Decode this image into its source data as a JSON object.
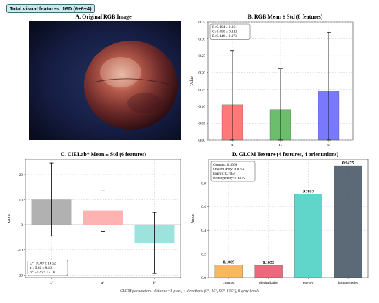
{
  "badge": "Total visual features: 16D (6+6+4)",
  "footer": "GLCM parameters: distance=1 pixel, 4 directions (0°, 45°, 90°, 135°), 8 gray levels",
  "colors": {
    "R": "#ff6b6b",
    "G": "#5cb85c",
    "B": "#6b6bff",
    "Lstar": "#a8a8a8",
    "astar": "#ffaaaa",
    "bstar": "#90e0d8",
    "contrast": "#f8b04f",
    "dissimilarity": "#e85a70",
    "energy": "#4fd1c5",
    "homogeneity": "#4a5a68"
  },
  "panels": {
    "a": {
      "title": "A. Original RGB Image"
    },
    "b": {
      "title": "B. RGB Mean ± Std (6 features)"
    },
    "c": {
      "title": "C. CIELab* Mean ± Std (6 features)"
    },
    "d": {
      "title": "D. GLCM Texture (4 features, 4 orientations)"
    }
  },
  "chart_data": [
    {
      "id": "rgb",
      "type": "bar",
      "title": "B. RGB Mean ± Std (6 features)",
      "ylabel": "Value",
      "categories": [
        "R",
        "G",
        "B"
      ],
      "values": [
        0.104,
        0.09,
        0.146
      ],
      "errors": [
        0.161,
        0.122,
        0.173
      ],
      "ylim": [
        0,
        0.35
      ],
      "yticks": [
        0.0,
        0.05,
        0.1,
        0.15,
        0.2,
        0.25,
        0.3,
        0.35
      ],
      "grid": true,
      "annotation": [
        "R: 0.104 ± 0.161",
        "G: 0.090 ± 0.122",
        "B: 0.146 ± 0.173"
      ]
    },
    {
      "id": "lab",
      "type": "bar",
      "title": "C. CIELab* Mean ± Std (6 features)",
      "ylabel": "Value",
      "categories": [
        "L*",
        "a*",
        "b*"
      ],
      "values": [
        10.09,
        5.62,
        -7.25
      ],
      "errors": [
        14.52,
        8.16,
        12.16
      ],
      "ylim": [
        -21,
        26
      ],
      "yticks": [
        -20,
        -10,
        0,
        10,
        20
      ],
      "grid": true,
      "annotation": [
        "L*: 10.09 ± 14.52",
        "a*: 5.62 ± 8.16",
        "b*: -7.25 ± 12.16"
      ]
    },
    {
      "id": "glcm",
      "type": "bar",
      "title": "D. GLCM Texture (4 features, 4 orientations)",
      "ylabel": "Value",
      "categories": [
        "contrast",
        "dissimilarity",
        "energy",
        "homogeneity"
      ],
      "values": [
        0.1069,
        0.1053,
        0.7057,
        0.9475
      ],
      "data_labels": [
        "0.1069",
        "0.1053",
        "0.7057",
        "0.9475"
      ],
      "ylim": [
        0,
        1.0
      ],
      "yticks": [
        0.0,
        0.2,
        0.4,
        0.6,
        0.8
      ],
      "grid": true,
      "annotation": [
        "Contrast: 0.1069",
        "Dissimilarity: 0.1053",
        "Energy: 0.7057",
        "Homogeneity: 0.9475"
      ]
    }
  ]
}
